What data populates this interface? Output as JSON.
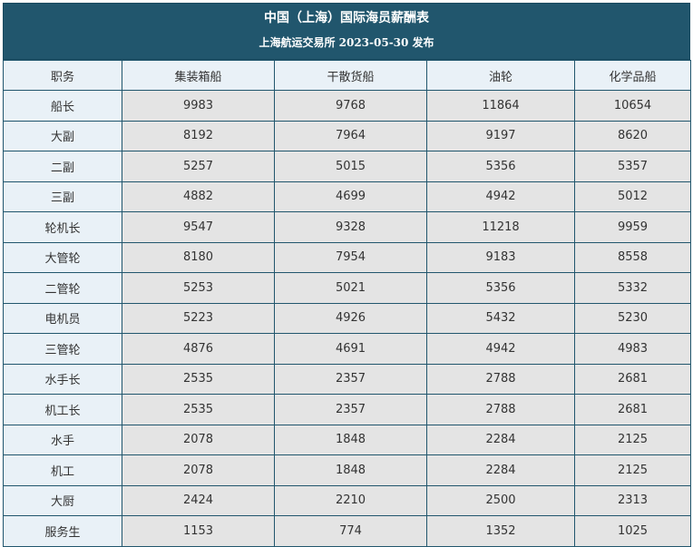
{
  "header": {
    "title": "中国（上海）国际海员薪酬表",
    "subtitle": "上海航运交易所 2023-05-30 发布"
  },
  "table": {
    "columns": [
      "职务",
      "集装箱船",
      "干散货船",
      "油轮",
      "化学品船"
    ],
    "rows": [
      {
        "role": "船长",
        "values": [
          "9983",
          "9768",
          "11864",
          "10654"
        ]
      },
      {
        "role": "大副",
        "values": [
          "8192",
          "7964",
          "9197",
          "8620"
        ]
      },
      {
        "role": "二副",
        "values": [
          "5257",
          "5015",
          "5356",
          "5357"
        ]
      },
      {
        "role": "三副",
        "values": [
          "4882",
          "4699",
          "4942",
          "5012"
        ]
      },
      {
        "role": "轮机长",
        "values": [
          "9547",
          "9328",
          "11218",
          "9959"
        ]
      },
      {
        "role": "大管轮",
        "values": [
          "8180",
          "7954",
          "9183",
          "8558"
        ]
      },
      {
        "role": "二管轮",
        "values": [
          "5253",
          "5021",
          "5356",
          "5332"
        ]
      },
      {
        "role": "电机员",
        "values": [
          "5223",
          "4926",
          "5432",
          "5230"
        ]
      },
      {
        "role": "三管轮",
        "values": [
          "4876",
          "4691",
          "4942",
          "4983"
        ]
      },
      {
        "role": "水手长",
        "values": [
          "2535",
          "2357",
          "2788",
          "2681"
        ]
      },
      {
        "role": "机工长",
        "values": [
          "2535",
          "2357",
          "2788",
          "2681"
        ]
      },
      {
        "role": "水手",
        "values": [
          "2078",
          "1848",
          "2284",
          "2125"
        ]
      },
      {
        "role": "机工",
        "values": [
          "2078",
          "1848",
          "2284",
          "2125"
        ]
      },
      {
        "role": "大厨",
        "values": [
          "2424",
          "2210",
          "2500",
          "2313"
        ]
      },
      {
        "role": "服务生",
        "values": [
          "1153",
          "774",
          "1352",
          "1025"
        ]
      }
    ]
  }
}
